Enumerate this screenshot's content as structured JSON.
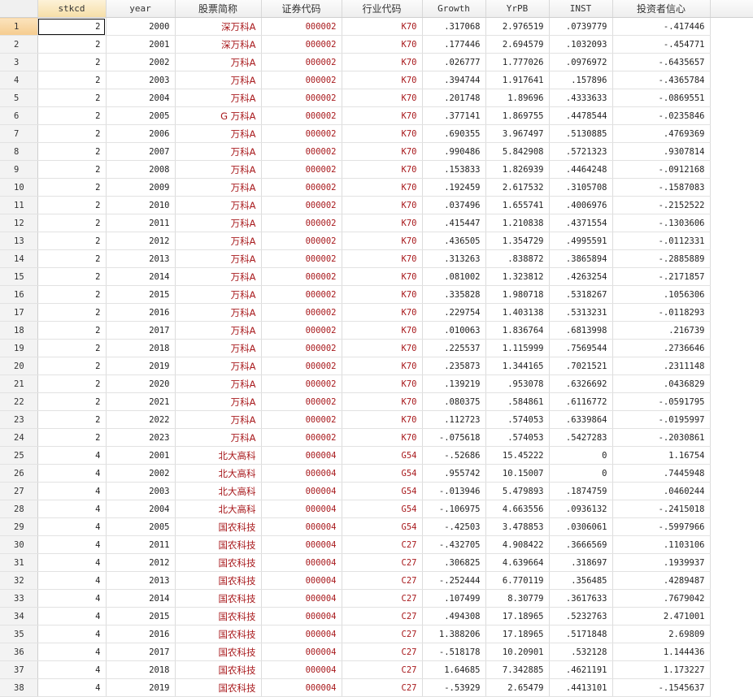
{
  "columns": [
    "stkcd",
    "year",
    "股票简称",
    "证券代码",
    "行业代码",
    "Growth",
    "YrPB",
    "INST",
    "投资者信心"
  ],
  "selected_row": 1,
  "selected_column": "stkcd",
  "colors": {
    "string_text": "#a8191c",
    "selected_header": "#f6dfa8",
    "selected_row_number": "#f5cc8f"
  },
  "rows": [
    [
      "2",
      "2000",
      "深万科A",
      "000002",
      "K70",
      ".317068",
      "2.976519",
      ".0739779",
      "-.417446"
    ],
    [
      "2",
      "2001",
      "深万科A",
      "000002",
      "K70",
      ".177446",
      "2.694579",
      ".1032093",
      "-.454771"
    ],
    [
      "2",
      "2002",
      "万科A",
      "000002",
      "K70",
      ".026777",
      "1.777026",
      ".0976972",
      "-.6435657"
    ],
    [
      "2",
      "2003",
      "万科A",
      "000002",
      "K70",
      ".394744",
      "1.917641",
      ".157896",
      "-.4365784"
    ],
    [
      "2",
      "2004",
      "万科A",
      "000002",
      "K70",
      ".201748",
      "1.89696",
      ".4333633",
      "-.0869551"
    ],
    [
      "2",
      "2005",
      "G 万科A",
      "000002",
      "K70",
      ".377141",
      "1.869755",
      ".4478544",
      "-.0235846"
    ],
    [
      "2",
      "2006",
      "万科A",
      "000002",
      "K70",
      ".690355",
      "3.967497",
      ".5130885",
      ".4769369"
    ],
    [
      "2",
      "2007",
      "万科A",
      "000002",
      "K70",
      ".990486",
      "5.842908",
      ".5721323",
      ".9307814"
    ],
    [
      "2",
      "2008",
      "万科A",
      "000002",
      "K70",
      ".153833",
      "1.826939",
      ".4464248",
      "-.0912168"
    ],
    [
      "2",
      "2009",
      "万科A",
      "000002",
      "K70",
      ".192459",
      "2.617532",
      ".3105708",
      "-.1587083"
    ],
    [
      "2",
      "2010",
      "万科A",
      "000002",
      "K70",
      ".037496",
      "1.655741",
      ".4006976",
      "-.2152522"
    ],
    [
      "2",
      "2011",
      "万科A",
      "000002",
      "K70",
      ".415447",
      "1.210838",
      ".4371554",
      "-.1303606"
    ],
    [
      "2",
      "2012",
      "万科A",
      "000002",
      "K70",
      ".436505",
      "1.354729",
      ".4995591",
      "-.0112331"
    ],
    [
      "2",
      "2013",
      "万科A",
      "000002",
      "K70",
      ".313263",
      ".838872",
      ".3865894",
      "-.2885889"
    ],
    [
      "2",
      "2014",
      "万科A",
      "000002",
      "K70",
      ".081002",
      "1.323812",
      ".4263254",
      "-.2171857"
    ],
    [
      "2",
      "2015",
      "万科A",
      "000002",
      "K70",
      ".335828",
      "1.980718",
      ".5318267",
      ".1056306"
    ],
    [
      "2",
      "2016",
      "万科A",
      "000002",
      "K70",
      ".229754",
      "1.403138",
      ".5313231",
      "-.0118293"
    ],
    [
      "2",
      "2017",
      "万科A",
      "000002",
      "K70",
      ".010063",
      "1.836764",
      ".6813998",
      ".216739"
    ],
    [
      "2",
      "2018",
      "万科A",
      "000002",
      "K70",
      ".225537",
      "1.115999",
      ".7569544",
      ".2736646"
    ],
    [
      "2",
      "2019",
      "万科A",
      "000002",
      "K70",
      ".235873",
      "1.344165",
      ".7021521",
      ".2311148"
    ],
    [
      "2",
      "2020",
      "万科A",
      "000002",
      "K70",
      ".139219",
      ".953078",
      ".6326692",
      ".0436829"
    ],
    [
      "2",
      "2021",
      "万科A",
      "000002",
      "K70",
      ".080375",
      ".584861",
      ".6116772",
      "-.0591795"
    ],
    [
      "2",
      "2022",
      "万科A",
      "000002",
      "K70",
      ".112723",
      ".574053",
      ".6339864",
      "-.0195997"
    ],
    [
      "2",
      "2023",
      "万科A",
      "000002",
      "K70",
      "-.075618",
      ".574053",
      ".5427283",
      "-.2030861"
    ],
    [
      "4",
      "2001",
      "北大高科",
      "000004",
      "G54",
      "-.52686",
      "15.45222",
      "0",
      "1.16754"
    ],
    [
      "4",
      "2002",
      "北大高科",
      "000004",
      "G54",
      ".955742",
      "10.15007",
      "0",
      ".7445948"
    ],
    [
      "4",
      "2003",
      "北大高科",
      "000004",
      "G54",
      "-.013946",
      "5.479893",
      ".1874759",
      ".0460244"
    ],
    [
      "4",
      "2004",
      "北大高科",
      "000004",
      "G54",
      "-.106975",
      "4.663556",
      ".0936132",
      "-.2415018"
    ],
    [
      "4",
      "2005",
      "国农科技",
      "000004",
      "G54",
      "-.42503",
      "3.478853",
      ".0306061",
      "-.5997966"
    ],
    [
      "4",
      "2011",
      "国农科技",
      "000004",
      "C27",
      "-.432705",
      "4.908422",
      ".3666569",
      ".1103106"
    ],
    [
      "4",
      "2012",
      "国农科技",
      "000004",
      "C27",
      ".306825",
      "4.639664",
      ".318697",
      ".1939937"
    ],
    [
      "4",
      "2013",
      "国农科技",
      "000004",
      "C27",
      "-.252444",
      "6.770119",
      ".356485",
      ".4289487"
    ],
    [
      "4",
      "2014",
      "国农科技",
      "000004",
      "C27",
      ".107499",
      "8.30779",
      ".3617633",
      ".7679042"
    ],
    [
      "4",
      "2015",
      "国农科技",
      "000004",
      "C27",
      ".494308",
      "17.18965",
      ".5232763",
      "2.471001"
    ],
    [
      "4",
      "2016",
      "国农科技",
      "000004",
      "C27",
      "1.388206",
      "17.18965",
      ".5171848",
      "2.69809"
    ],
    [
      "4",
      "2017",
      "国农科技",
      "000004",
      "C27",
      "-.518178",
      "10.20901",
      ".532128",
      "1.144436"
    ],
    [
      "4",
      "2018",
      "国农科技",
      "000004",
      "C27",
      "1.64685",
      "7.342885",
      ".4621191",
      "1.173227"
    ],
    [
      "4",
      "2019",
      "国农科技",
      "000004",
      "C27",
      "-.53929",
      "2.65479",
      ".4413101",
      "-.1545637"
    ]
  ]
}
